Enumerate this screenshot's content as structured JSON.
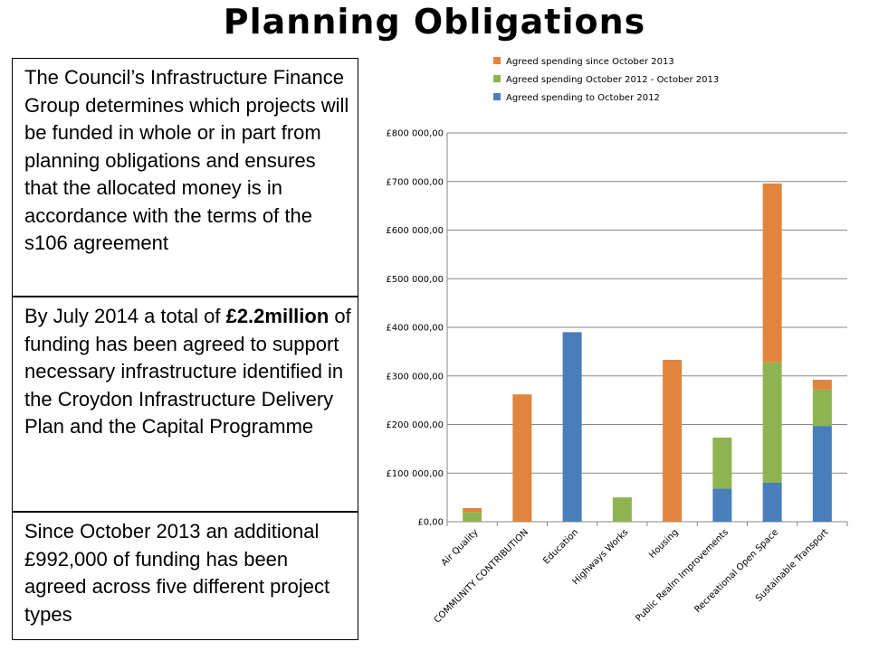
{
  "title": "Planning Obligations",
  "boxes": [
    {
      "parts": [
        "The Council’s Infrastructure Finance Group determines which projects will be funded in whole or in part from planning obligations and ensures that the allocated money is in accordance with the terms of the s106 agreement"
      ]
    },
    {
      "parts": [
        "By July 2014 a total of ",
        "£2.2million",
        " of funding has been agreed to support necessary infrastructure identified in the Croydon Infrastructure Delivery Plan and the Capital Programme"
      ]
    },
    {
      "parts": [
        "Since October 2013 an additional £992,000 of funding has been agreed across five different project types"
      ]
    }
  ],
  "colors": {
    "series_to_oct_2012": "#4a7ebb",
    "series_oct2012_oct2013": "#8eb451",
    "series_since_oct_2013": "#e0843e",
    "grid": "#878787"
  },
  "chart_data": {
    "type": "bar",
    "stacked": true,
    "categories": [
      "Air Quality",
      "COMMUNITY CONTRIBUTION",
      "Education",
      "Highways Works",
      "Housing",
      "Public Realm Improvements",
      "Recreational Open Space",
      "Sustainable Transport"
    ],
    "series": [
      {
        "name": "Agreed spending to October 2012",
        "color": "#4a7ebb",
        "values": [
          0,
          0,
          390000,
          0,
          0,
          68000,
          80000,
          197000
        ]
      },
      {
        "name": "Agreed spending October 2012 - October 2013",
        "color": "#8eb451",
        "values": [
          20000,
          0,
          0,
          50000,
          0,
          105000,
          248000,
          75000
        ]
      },
      {
        "name": "Agreed spending since October 2013",
        "color": "#e0843e",
        "values": [
          8000,
          262000,
          0,
          0,
          333000,
          0,
          368000,
          20000
        ]
      }
    ],
    "legend_order": [
      "Agreed spending since October 2013",
      "Agreed spending October 2012 - October 2013",
      "Agreed spending to October 2012"
    ],
    "yticks": [
      "£0,00",
      "£100 000,00",
      "£200 000,00",
      "£300 000,00",
      "£400 000,00",
      "£500 000,00",
      "£600 000,00",
      "£700 000,00",
      "£800 000,00"
    ],
    "ylim": [
      0,
      800000
    ],
    "grid": true,
    "legend_position": "top"
  }
}
